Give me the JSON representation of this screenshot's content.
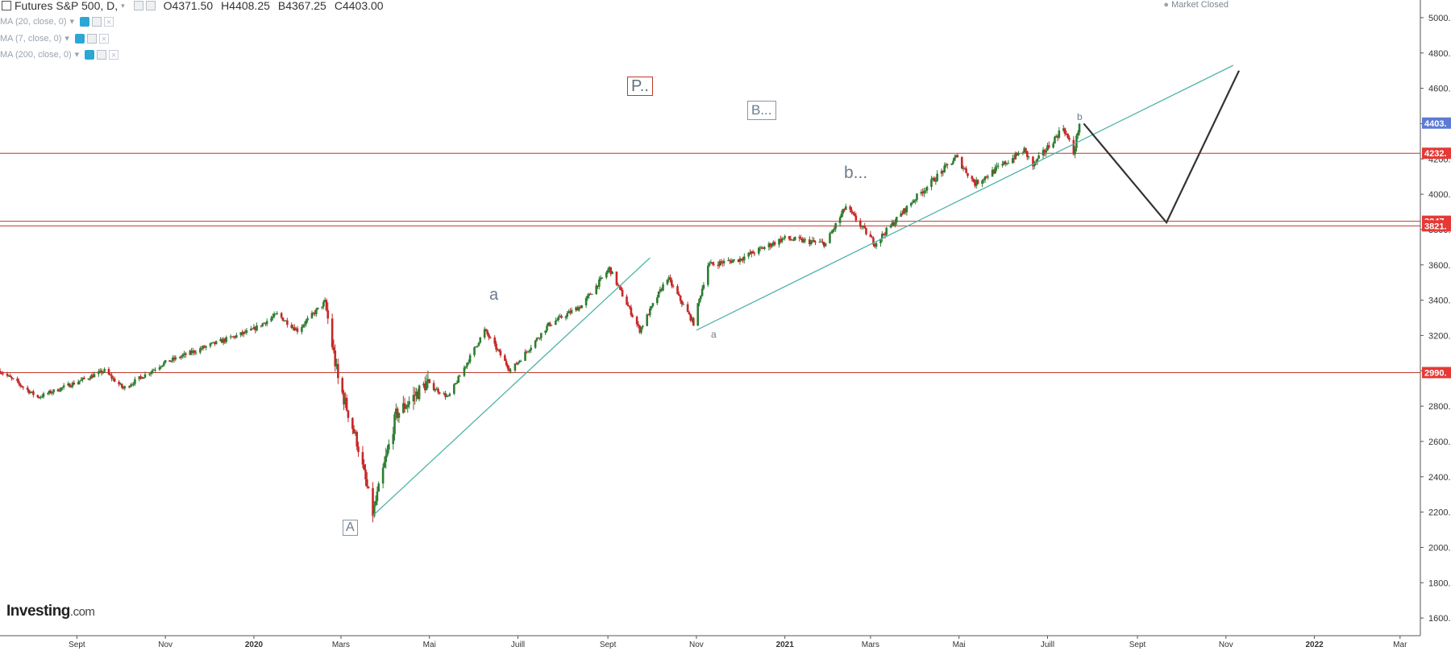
{
  "header": {
    "title": "Futures S&P 500, D,",
    "open": "O4371.50",
    "high": "H4408.25",
    "low": "B4367.25",
    "close": "C4403.00",
    "market_status": "Market Closed"
  },
  "indicators": [
    {
      "label": "MA (20, close, 0)"
    },
    {
      "label": "MA (7, close, 0)"
    },
    {
      "label": "MA (200, close, 0)"
    }
  ],
  "logo": {
    "main": "Investing",
    "suffix": ".com"
  },
  "annotations": {
    "p_box": "P..",
    "b_box": "B...",
    "b_text": "b...",
    "a_text": "a",
    "a_box": "A",
    "small_a": "a",
    "small_b": "b"
  },
  "colors": {
    "up": "#2e7d32",
    "down": "#c62828",
    "hline": "#c0392b",
    "trendline": "#4fb3a9",
    "projection": "#333333",
    "current_tag": "#5b7bd5",
    "level_tag": "#e53935"
  },
  "chart_data": {
    "type": "candlestick",
    "x_range": [
      "2019-07-10",
      "2022-03-15"
    ],
    "ylim": [
      1500,
      5100
    ],
    "y_ticks": [
      1600,
      1800,
      2000,
      2200,
      2400,
      2600,
      2800,
      3000,
      3200,
      3400,
      3600,
      3800,
      4000,
      4200,
      4400,
      4600,
      4800,
      5000
    ],
    "y_tick_labels": [
      "1600.",
      "1800.",
      "2000.",
      "2200.",
      "2400.",
      "2600.",
      "2800.",
      "3000.",
      "3200.",
      "3400.",
      "3600.",
      "3800.",
      "4000.",
      "4200.",
      "4400.",
      "4600.",
      "4800.",
      "5000."
    ],
    "x_ticks": [
      {
        "date": "2019-09-01",
        "label": "Sept"
      },
      {
        "date": "2019-11-01",
        "label": "Nov"
      },
      {
        "date": "2020-01-01",
        "label": "2020"
      },
      {
        "date": "2020-03-01",
        "label": "Mars"
      },
      {
        "date": "2020-05-01",
        "label": "Mai"
      },
      {
        "date": "2020-07-01",
        "label": "Juill"
      },
      {
        "date": "2020-09-01",
        "label": "Sept"
      },
      {
        "date": "2020-11-01",
        "label": "Nov"
      },
      {
        "date": "2021-01-01",
        "label": "2021"
      },
      {
        "date": "2021-03-01",
        "label": "Mars"
      },
      {
        "date": "2021-05-01",
        "label": "Mai"
      },
      {
        "date": "2021-07-01",
        "label": "Juill"
      },
      {
        "date": "2021-09-01",
        "label": "Sept"
      },
      {
        "date": "2021-11-01",
        "label": "Nov"
      },
      {
        "date": "2022-01-01",
        "label": "2022"
      },
      {
        "date": "2022-03-01",
        "label": "Mar"
      }
    ],
    "price_path": [
      [
        "2019-07-10",
        3000
      ],
      [
        "2019-08-05",
        2850
      ],
      [
        "2019-08-30",
        2930
      ],
      [
        "2019-09-20",
        3000
      ],
      [
        "2019-10-03",
        2900
      ],
      [
        "2019-10-30",
        3040
      ],
      [
        "2019-11-30",
        3140
      ],
      [
        "2019-12-31",
        3230
      ],
      [
        "2020-01-17",
        3320
      ],
      [
        "2020-01-31",
        3230
      ],
      [
        "2020-02-19",
        3390
      ],
      [
        "2020-02-28",
        2950
      ],
      [
        "2020-03-12",
        2600
      ],
      [
        "2020-03-23",
        2190
      ],
      [
        "2020-04-08",
        2750
      ],
      [
        "2020-04-29",
        2930
      ],
      [
        "2020-05-14",
        2850
      ],
      [
        "2020-06-08",
        3230
      ],
      [
        "2020-06-26",
        3000
      ],
      [
        "2020-07-22",
        3260
      ],
      [
        "2020-08-14",
        3370
      ],
      [
        "2020-09-02",
        3580
      ],
      [
        "2020-09-23",
        3230
      ],
      [
        "2020-10-12",
        3530
      ],
      [
        "2020-10-30",
        3270
      ],
      [
        "2020-11-09",
        3600
      ],
      [
        "2020-11-30",
        3630
      ],
      [
        "2020-12-31",
        3750
      ],
      [
        "2021-01-29",
        3720
      ],
      [
        "2021-02-12",
        3930
      ],
      [
        "2021-03-04",
        3720
      ],
      [
        "2021-03-31",
        3970
      ],
      [
        "2021-04-29",
        4210
      ],
      [
        "2021-05-12",
        4060
      ],
      [
        "2021-06-15",
        4250
      ],
      [
        "2021-06-21",
        4160
      ],
      [
        "2021-07-12",
        4380
      ],
      [
        "2021-07-19",
        4230
      ],
      [
        "2021-07-23",
        4403
      ]
    ],
    "hlines": [
      {
        "value": 4232,
        "label": "4232."
      },
      {
        "value": 3847,
        "label": "3847."
      },
      {
        "value": 3821,
        "label": "3821."
      },
      {
        "value": 2990,
        "label": "2990."
      }
    ],
    "current_price": {
      "value": 4403,
      "label": "4403."
    },
    "trendlines": [
      {
        "from": [
          "2020-03-23",
          2180
        ],
        "to": [
          "2020-09-30",
          3640
        ]
      },
      {
        "from": [
          "2020-11-01",
          3230
        ],
        "to": [
          "2021-11-06",
          4730
        ]
      }
    ],
    "projection": [
      [
        "2021-07-26",
        4400
      ],
      [
        "2021-09-21",
        3840
      ],
      [
        "2021-11-10",
        4700
      ]
    ]
  }
}
